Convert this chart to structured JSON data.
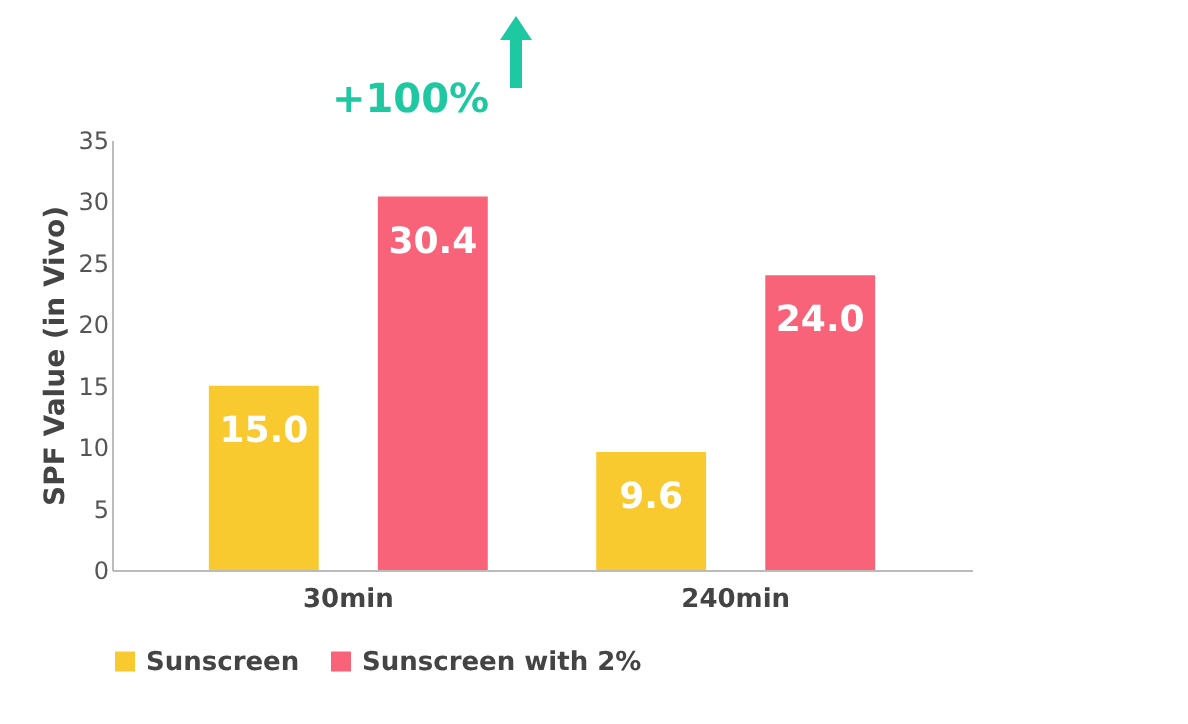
{
  "chart_data": {
    "type": "bar",
    "ylabel": "SPF Value (in Vivo)",
    "categories": [
      "30min",
      "240min"
    ],
    "series": [
      {
        "name": "Sunscreen",
        "color": "#f9c930",
        "values": [
          15.0,
          9.6
        ]
      },
      {
        "name": "Sunscreen with 2%",
        "color": "#f8637a",
        "values": [
          30.4,
          24.0
        ]
      }
    ],
    "value_labels": [
      [
        "15.0",
        "9.6"
      ],
      [
        "30.4",
        "24.0"
      ]
    ],
    "ylim": [
      0,
      35
    ],
    "yticks": [
      0,
      5,
      10,
      15,
      20,
      25,
      30,
      35
    ],
    "grid": false,
    "legend": "bottom",
    "annotations": [
      "+100%"
    ]
  }
}
